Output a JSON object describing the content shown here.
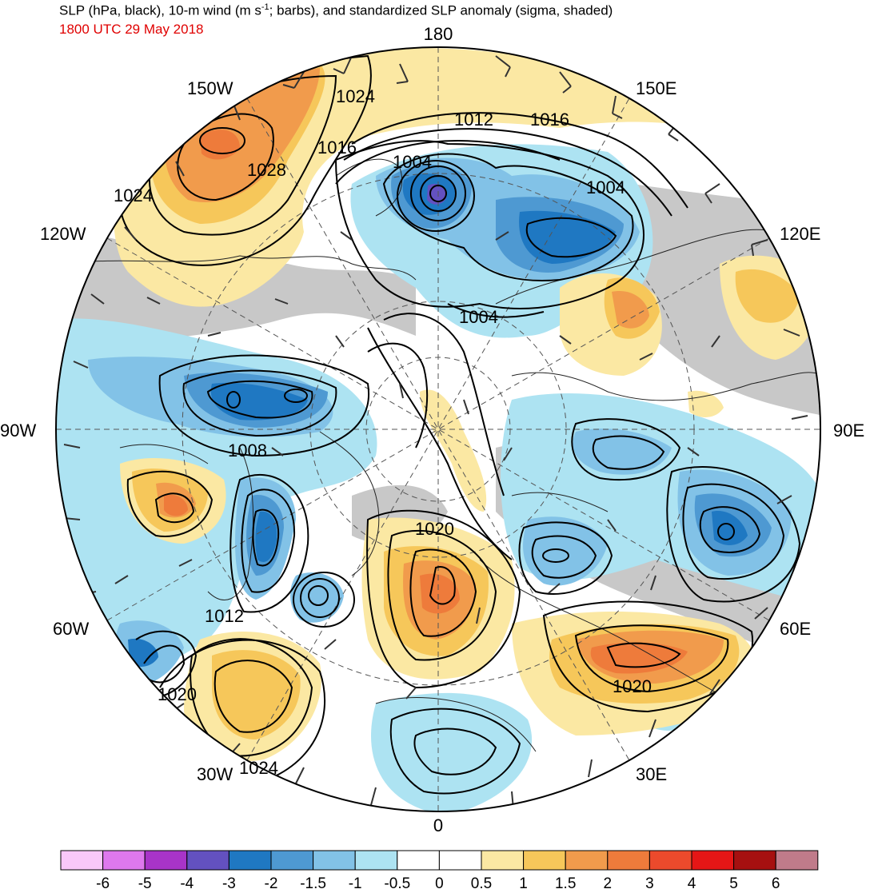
{
  "title": {
    "line1_prefix": "SLP (hPa, black), 10-m wind (m s",
    "line1_sup": "-1",
    "line1_suffix": "; barbs), and standardized SLP anomaly (sigma, shaded)",
    "line2": "1800 UTC 29 May 2018"
  },
  "longitude_labels": {
    "top": "180",
    "bottom": "0",
    "left": "90W",
    "right": "90E",
    "upper_left_outer": "120W",
    "upper_left_inner": "150W",
    "upper_right_inner": "150E",
    "upper_right_outer": "120E",
    "lower_left_outer": "60W",
    "lower_left_inner": "30W",
    "lower_right_outer": "60E",
    "lower_right_inner": "30E"
  },
  "contour_labels": [
    {
      "id": "c1024a",
      "text": "1024"
    },
    {
      "id": "c1012a",
      "text": "1012"
    },
    {
      "id": "c1016a",
      "text": "1016"
    },
    {
      "id": "c1016b",
      "text": "1016"
    },
    {
      "id": "c1028",
      "text": "1028"
    },
    {
      "id": "c1004a",
      "text": "1004"
    },
    {
      "id": "c1004b",
      "text": "1004"
    },
    {
      "id": "c1024b",
      "text": "1024"
    },
    {
      "id": "c1004c",
      "text": "1004"
    },
    {
      "id": "c1008",
      "text": "1008"
    },
    {
      "id": "c1020a",
      "text": "1020"
    },
    {
      "id": "c1012b",
      "text": "1012"
    },
    {
      "id": "c1020b",
      "text": "1020"
    },
    {
      "id": "c1020c",
      "text": "1020"
    },
    {
      "id": "c1024c",
      "text": "1024"
    }
  ],
  "colorbar": {
    "colors": [
      "#f9c8f9",
      "#de78ed",
      "#a834c8",
      "#6351c0",
      "#1f78c2",
      "#4e99d2",
      "#82c2e7",
      "#ade3f2",
      "#ffffff",
      "#ffffff",
      "#fbe8a3",
      "#f6c75a",
      "#f19b4c",
      "#ee7b3b",
      "#ec4a2c",
      "#e51616",
      "#a61010",
      "#c07b8a"
    ],
    "ticks": [
      "-6",
      "-5",
      "-4",
      "-3",
      "-2",
      "-1.5",
      "-1",
      "-0.5",
      "0",
      "0.5",
      "1",
      "1.5",
      "2",
      "3",
      "4",
      "5",
      "6"
    ]
  },
  "colors": {
    "title_line2": "#e00000",
    "land_gray": "#c8c8c8",
    "contour": "#000000",
    "barb": "#333333"
  }
}
